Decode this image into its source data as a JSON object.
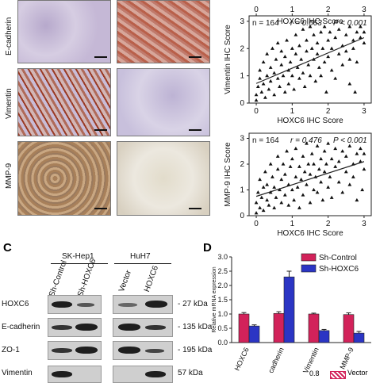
{
  "panel_c_label": "C",
  "panel_d_label": "D",
  "ihc_rows": [
    "E-cadherin",
    "Vimentin",
    "MMP-9"
  ],
  "scatter_x_label_top": "HOXC6 IHC Score",
  "colors": {
    "sh_control": "#d2225a",
    "sh_hoxc6": "#2b35c4",
    "ihc_brown": "#9a3b25",
    "ihc_blue": "#7a7fb5"
  },
  "chart_data": [
    {
      "type": "scatter",
      "xlabel": "HOXC6 IHC Score",
      "ylabel": "Vimentin IHC Score",
      "stats": {
        "n": "n = 164",
        "r": "r = 0.563",
        "p": "P < 0.001"
      },
      "xticks": [
        "0",
        "1",
        "2",
        "3"
      ],
      "yticks": [
        "0",
        "1",
        "2",
        "3"
      ],
      "xlim": [
        -0.2,
        3.2
      ],
      "ylim": [
        0,
        3.2
      ],
      "trend": [
        [
          0,
          0.72
        ],
        [
          3,
          2.4
        ]
      ],
      "points": [
        [
          0.0,
          0.1
        ],
        [
          0.0,
          0.3
        ],
        [
          0.05,
          0.6
        ],
        [
          0.1,
          0.9
        ],
        [
          0.1,
          1.2
        ],
        [
          0.15,
          0.4
        ],
        [
          0.2,
          0.7
        ],
        [
          0.2,
          1.5
        ],
        [
          0.25,
          0.2
        ],
        [
          0.3,
          1.0
        ],
        [
          0.3,
          1.8
        ],
        [
          0.35,
          0.5
        ],
        [
          0.4,
          1.3
        ],
        [
          0.4,
          0.8
        ],
        [
          0.45,
          2.0
        ],
        [
          0.5,
          0.3
        ],
        [
          0.5,
          1.1
        ],
        [
          0.55,
          1.6
        ],
        [
          0.6,
          0.9
        ],
        [
          0.6,
          2.2
        ],
        [
          0.65,
          0.6
        ],
        [
          0.7,
          1.4
        ],
        [
          0.7,
          1.9
        ],
        [
          0.75,
          1.0
        ],
        [
          0.8,
          0.4
        ],
        [
          0.8,
          1.7
        ],
        [
          0.85,
          2.3
        ],
        [
          0.9,
          1.2
        ],
        [
          0.9,
          0.7
        ],
        [
          0.95,
          1.5
        ],
        [
          1.0,
          2.0
        ],
        [
          1.0,
          1.0
        ],
        [
          1.05,
          0.5
        ],
        [
          1.1,
          1.8
        ],
        [
          1.1,
          2.5
        ],
        [
          1.15,
          1.3
        ],
        [
          1.2,
          0.9
        ],
        [
          1.2,
          2.1
        ],
        [
          1.25,
          1.6
        ],
        [
          1.3,
          2.7
        ],
        [
          1.3,
          1.1
        ],
        [
          1.35,
          0.6
        ],
        [
          1.4,
          1.9
        ],
        [
          1.4,
          2.3
        ],
        [
          1.45,
          1.4
        ],
        [
          1.5,
          2.8
        ],
        [
          1.5,
          1.0
        ],
        [
          1.55,
          2.0
        ],
        [
          1.6,
          1.6
        ],
        [
          1.6,
          2.5
        ],
        [
          1.65,
          0.8
        ],
        [
          1.7,
          1.8
        ],
        [
          1.7,
          2.2
        ],
        [
          1.75,
          1.3
        ],
        [
          1.8,
          2.6
        ],
        [
          1.8,
          1.0
        ],
        [
          1.85,
          2.0
        ],
        [
          1.9,
          1.5
        ],
        [
          1.9,
          2.8
        ],
        [
          1.95,
          0.4
        ],
        [
          2.0,
          2.3
        ],
        [
          2.0,
          1.7
        ],
        [
          2.05,
          2.6
        ],
        [
          2.1,
          1.2
        ],
        [
          2.1,
          2.0
        ],
        [
          2.2,
          2.4
        ],
        [
          2.2,
          0.9
        ],
        [
          2.3,
          1.8
        ],
        [
          2.3,
          2.7
        ],
        [
          2.4,
          2.1
        ],
        [
          2.4,
          1.4
        ],
        [
          2.5,
          2.5
        ],
        [
          2.5,
          1.9
        ],
        [
          2.6,
          2.8
        ],
        [
          2.6,
          1.6
        ],
        [
          2.7,
          2.3
        ],
        [
          2.7,
          2.0
        ],
        [
          2.8,
          2.6
        ],
        [
          2.8,
          1.5
        ],
        [
          2.9,
          2.4
        ],
        [
          2.9,
          2.8
        ],
        [
          3.0,
          2.2
        ],
        [
          3.0,
          2.6
        ],
        [
          2.6,
          0.7
        ],
        [
          2.75,
          0.4
        ]
      ]
    },
    {
      "type": "scatter",
      "xlabel": "HOXC6 IHC Score",
      "ylabel": "MMP-9 IHC Score",
      "stats": {
        "n": "n = 164",
        "r": "r = 0.476",
        "p": "P < 0.001"
      },
      "xticks": [
        "0",
        "1",
        "2",
        "3"
      ],
      "yticks": [
        "0",
        "1",
        "2",
        "3"
      ],
      "xlim": [
        -0.2,
        3.2
      ],
      "ylim": [
        0,
        3.2
      ],
      "trend": [
        [
          0,
          0.75
        ],
        [
          3,
          2.1
        ]
      ],
      "points": [
        [
          0.0,
          0.1
        ],
        [
          0.0,
          0.5
        ],
        [
          0.05,
          0.9
        ],
        [
          0.1,
          0.3
        ],
        [
          0.1,
          1.4
        ],
        [
          0.15,
          0.7
        ],
        [
          0.2,
          1.1
        ],
        [
          0.2,
          0.2
        ],
        [
          0.25,
          1.7
        ],
        [
          0.3,
          0.6
        ],
        [
          0.3,
          1.2
        ],
        [
          0.35,
          0.4
        ],
        [
          0.4,
          2.0
        ],
        [
          0.4,
          0.9
        ],
        [
          0.45,
          1.5
        ],
        [
          0.5,
          0.3
        ],
        [
          0.5,
          1.1
        ],
        [
          0.55,
          0.7
        ],
        [
          0.6,
          1.8
        ],
        [
          0.6,
          2.3
        ],
        [
          0.65,
          1.0
        ],
        [
          0.7,
          0.5
        ],
        [
          0.7,
          1.4
        ],
        [
          0.75,
          2.0
        ],
        [
          0.8,
          0.8
        ],
        [
          0.8,
          1.6
        ],
        [
          0.85,
          2.5
        ],
        [
          0.9,
          1.2
        ],
        [
          0.9,
          0.4
        ],
        [
          0.95,
          1.9
        ],
        [
          1.0,
          1.0
        ],
        [
          1.0,
          2.2
        ],
        [
          1.05,
          0.6
        ],
        [
          1.1,
          1.5
        ],
        [
          1.1,
          2.6
        ],
        [
          1.15,
          1.1
        ],
        [
          1.2,
          1.9
        ],
        [
          1.2,
          0.3
        ],
        [
          1.25,
          1.4
        ],
        [
          1.3,
          2.3
        ],
        [
          1.3,
          0.8
        ],
        [
          1.35,
          1.7
        ],
        [
          1.4,
          2.8
        ],
        [
          1.4,
          1.2
        ],
        [
          1.45,
          2.0
        ],
        [
          1.5,
          0.5
        ],
        [
          1.5,
          1.6
        ],
        [
          1.55,
          2.4
        ],
        [
          1.6,
          1.0
        ],
        [
          1.6,
          2.0
        ],
        [
          1.65,
          1.5
        ],
        [
          1.7,
          2.7
        ],
        [
          1.7,
          0.9
        ],
        [
          1.75,
          1.8
        ],
        [
          1.8,
          2.2
        ],
        [
          1.8,
          1.3
        ],
        [
          1.85,
          0.6
        ],
        [
          1.9,
          2.5
        ],
        [
          1.9,
          1.7
        ],
        [
          1.95,
          2.0
        ],
        [
          2.0,
          1.1
        ],
        [
          2.0,
          2.8
        ],
        [
          2.05,
          1.5
        ],
        [
          2.1,
          2.2
        ],
        [
          2.1,
          0.7
        ],
        [
          2.2,
          1.9
        ],
        [
          2.2,
          2.6
        ],
        [
          2.3,
          1.3
        ],
        [
          2.3,
          2.1
        ],
        [
          2.4,
          2.5
        ],
        [
          2.4,
          0.9
        ],
        [
          2.5,
          1.7
        ],
        [
          2.5,
          2.3
        ],
        [
          2.6,
          1.2
        ],
        [
          2.6,
          2.7
        ],
        [
          2.7,
          2.0
        ],
        [
          2.7,
          1.5
        ],
        [
          2.8,
          2.4
        ],
        [
          2.8,
          0.6
        ],
        [
          2.9,
          2.1
        ],
        [
          2.9,
          2.6
        ],
        [
          3.0,
          1.8
        ],
        [
          3.0,
          2.4
        ],
        [
          2.95,
          1.0
        ]
      ]
    },
    {
      "type": "bar",
      "ylabel": "Relative mRNA expression",
      "categories": [
        "HOXC6",
        "E-cadherin",
        "Vimentin",
        "MMP-9"
      ],
      "ylim": [
        0,
        3.0
      ],
      "yticks": [
        "0.0",
        "0.5",
        "1.0",
        "1.5",
        "2.0",
        "2.5",
        "3.0"
      ],
      "legend_position": "top-right",
      "series": [
        {
          "name": "Sh-Control",
          "values": [
            1.0,
            1.02,
            1.0,
            0.98
          ],
          "errors": [
            0.05,
            0.06,
            0.03,
            0.06
          ]
        },
        {
          "name": "Sh-HOXC6",
          "values": [
            0.58,
            2.3,
            0.42,
            0.33
          ],
          "errors": [
            0.04,
            0.2,
            0.04,
            0.06
          ]
        }
      ]
    }
  ],
  "western": {
    "groups": [
      "SK-Hep1",
      "HuH7"
    ],
    "lanes": [
      "Sh-Control",
      "Sh-HOXC6",
      "Vector",
      "HOXC6"
    ],
    "rows": [
      {
        "label": "HOXC6",
        "kda": "- 27 kDa"
      },
      {
        "label": "E-cadherin",
        "kda": "- 135 kDa"
      },
      {
        "label": "ZO-1",
        "kda": "- 195 kDa"
      },
      {
        "label": "Vimentin",
        "kda": "57 kDa"
      }
    ]
  },
  "bottom_partial": {
    "value": "0.8",
    "label": "Vector"
  }
}
